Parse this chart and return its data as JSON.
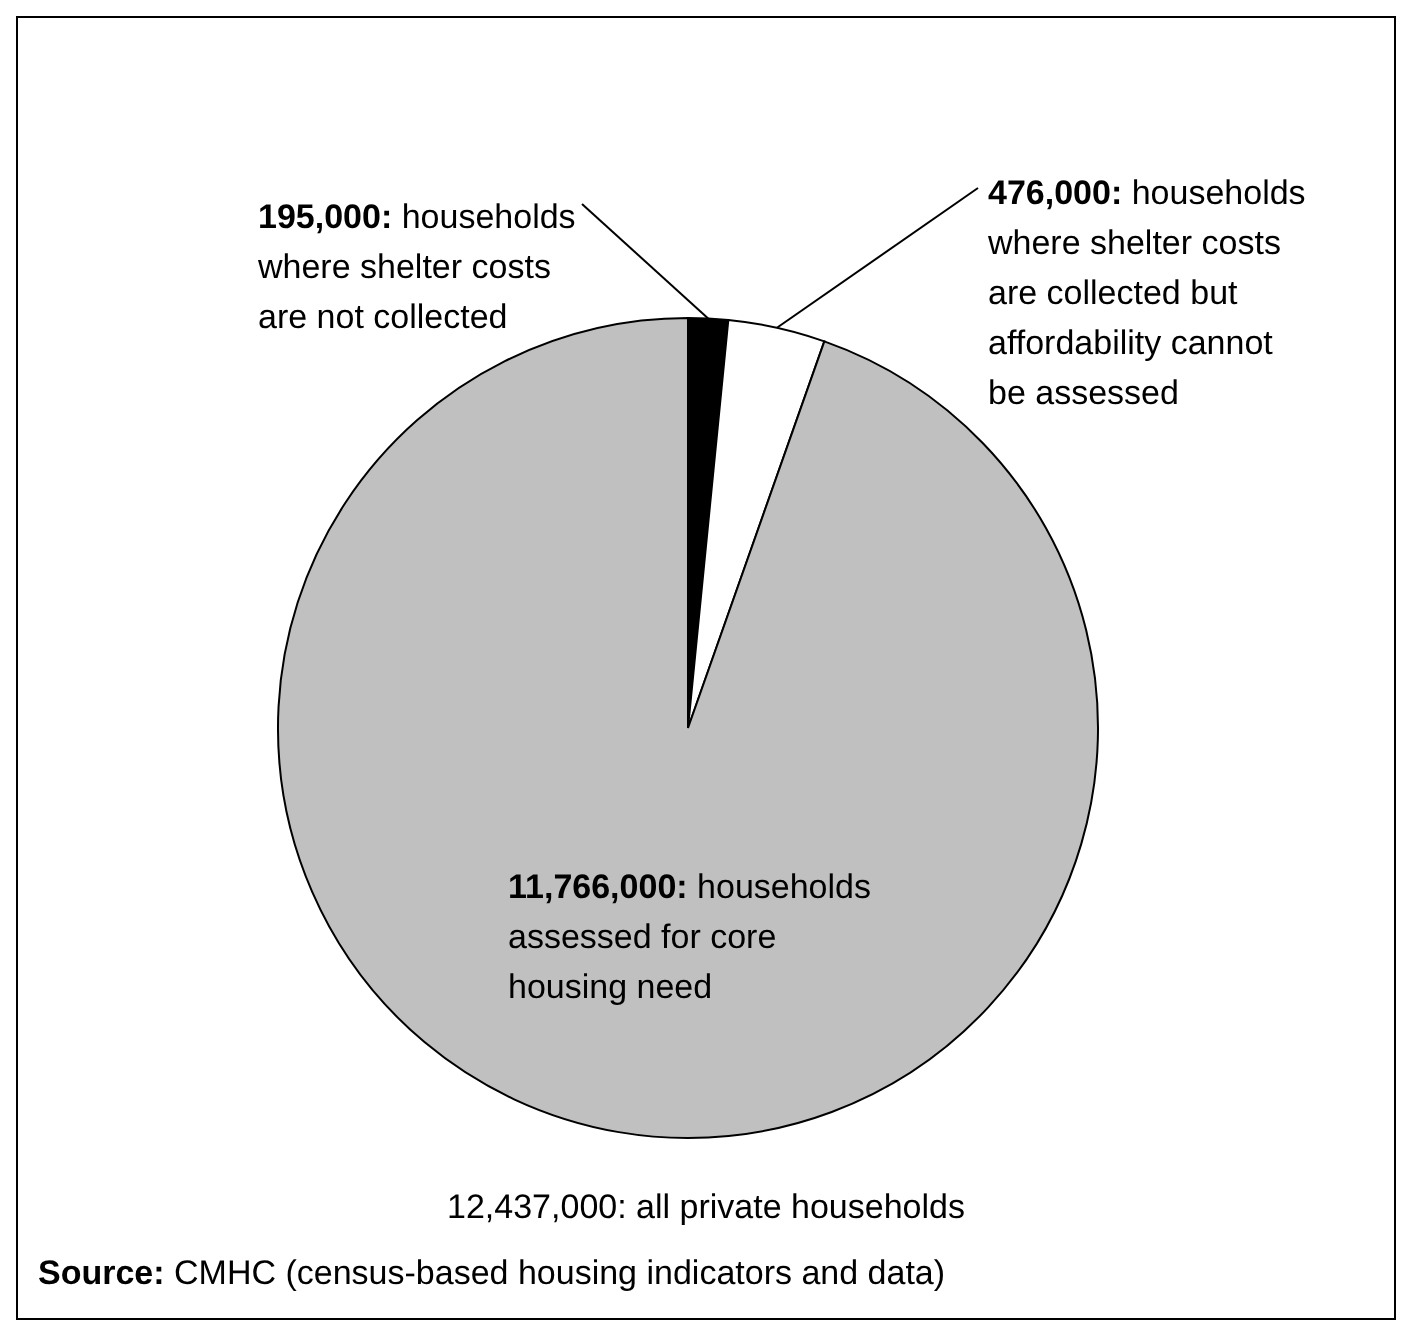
{
  "chart_data": {
    "type": "pie",
    "categories": [
      "households where shelter costs are not collected",
      "households where shelter costs are collected but affordability cannot be assessed",
      "households assessed for core housing need"
    ],
    "values": [
      195000,
      476000,
      11766000
    ],
    "colors": [
      "#000000",
      "#ffffff",
      "#c0c0c0"
    ],
    "value_labels": [
      "195,000:",
      "476,000:",
      "11,766,000:"
    ],
    "annotations": [
      "12,437,000: all private households",
      "Source: CMHC (census-based housing indicators and data)"
    ]
  }
}
